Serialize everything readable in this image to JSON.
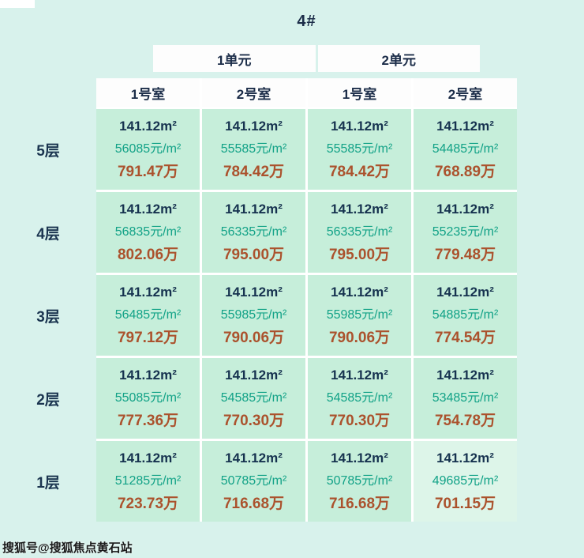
{
  "page": {
    "title": "4#",
    "watermark": "搜狐号@搜狐焦点黄石站"
  },
  "chart_data": {
    "type": "table",
    "title": "4#",
    "unit_headers": [
      "1单元",
      "2单元"
    ],
    "room_headers": [
      "1号室",
      "2号室",
      "1号室",
      "2号室"
    ],
    "row_labels": [
      "5层",
      "4层",
      "3层",
      "2层",
      "1层"
    ],
    "cell_lines": [
      "area",
      "unit_price",
      "total_price"
    ],
    "floors": [
      {
        "label": "5层",
        "cells": [
          {
            "area": "141.12m²",
            "unit_price": "56085元/m²",
            "total_price": "791.47万"
          },
          {
            "area": "141.12m²",
            "unit_price": "55585元/m²",
            "total_price": "784.42万"
          },
          {
            "area": "141.12m²",
            "unit_price": "55585元/m²",
            "total_price": "784.42万"
          },
          {
            "area": "141.12m²",
            "unit_price": "54485元/m²",
            "total_price": "768.89万"
          }
        ]
      },
      {
        "label": "4层",
        "cells": [
          {
            "area": "141.12m²",
            "unit_price": "56835元/m²",
            "total_price": "802.06万"
          },
          {
            "area": "141.12m²",
            "unit_price": "56335元/m²",
            "total_price": "795.00万"
          },
          {
            "area": "141.12m²",
            "unit_price": "56335元/m²",
            "total_price": "795.00万"
          },
          {
            "area": "141.12m²",
            "unit_price": "55235元/m²",
            "total_price": "779.48万"
          }
        ]
      },
      {
        "label": "3层",
        "cells": [
          {
            "area": "141.12m²",
            "unit_price": "56485元/m²",
            "total_price": "797.12万"
          },
          {
            "area": "141.12m²",
            "unit_price": "55985元/m²",
            "total_price": "790.06万"
          },
          {
            "area": "141.12m²",
            "unit_price": "55985元/m²",
            "total_price": "790.06万"
          },
          {
            "area": "141.12m²",
            "unit_price": "54885元/m²",
            "total_price": "774.54万"
          }
        ]
      },
      {
        "label": "2层",
        "cells": [
          {
            "area": "141.12m²",
            "unit_price": "55085元/m²",
            "total_price": "777.36万"
          },
          {
            "area": "141.12m²",
            "unit_price": "54585元/m²",
            "total_price": "770.30万"
          },
          {
            "area": "141.12m²",
            "unit_price": "54585元/m²",
            "total_price": "770.30万"
          },
          {
            "area": "141.12m²",
            "unit_price": "53485元/m²",
            "total_price": "754.78万"
          }
        ]
      },
      {
        "label": "1层",
        "cells": [
          {
            "area": "141.12m²",
            "unit_price": "51285元/m²",
            "total_price": "723.73万"
          },
          {
            "area": "141.12m²",
            "unit_price": "50785元/m²",
            "total_price": "716.68万"
          },
          {
            "area": "141.12m²",
            "unit_price": "50785元/m²",
            "total_price": "716.68万"
          },
          {
            "area": "141.12m²",
            "unit_price": "49685元/m²",
            "total_price": "701.15万"
          }
        ]
      }
    ]
  },
  "colors": {
    "page_background": "#d8f2ec",
    "cell_background": "#c6eeda",
    "highlight_cell_background": "#ddf5e9",
    "header_background": "#ffffff",
    "area_text": "#16324f",
    "unit_price_text": "#12a287",
    "total_price_text": "#ab522d",
    "header_text": "#1c2d49"
  }
}
